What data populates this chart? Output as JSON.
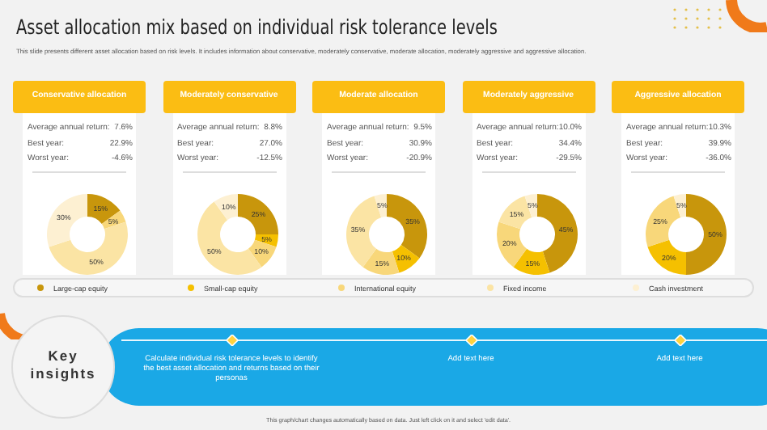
{
  "chart_data": [
    {
      "type": "other",
      "title": "Asset allocation mix based on individual risk tolerance levels",
      "subtitle": "This slide presents different asset allocation based on risk levels. It includes information about conservative, moderately conservative, moderate allocation, moderately aggressive and aggressive allocation."
    },
    {
      "type": "donut",
      "title": "Conservative allocation",
      "annotations": [
        "Average annual return:",
        "7.6%",
        "Best year:",
        "22.9%",
        "Worst year:",
        "-4.6%"
      ],
      "categories": [
        "Large-cap equity",
        "Small-cap equity",
        "International equity",
        "Fixed income",
        "Cash investment"
      ],
      "values": [
        15,
        0,
        5,
        50,
        30
      ],
      "value_labels": [
        "15%",
        null,
        "5%",
        "50%",
        "30%"
      ],
      "colors": [
        "#c8960c",
        "#f5c000",
        "#f8d77a",
        "#fbe4a4",
        "#fdf0d2"
      ],
      "legend": "bottom"
    },
    {
      "type": "donut",
      "title": "Moderately conservative",
      "annotations": [
        "Average annual return:",
        "8.8%",
        "Best year:",
        "27.0%",
        "Worst year:",
        "-12.5%"
      ],
      "values": [
        25,
        5,
        10,
        50,
        10
      ],
      "value_labels": [
        "25%",
        "5%",
        "10%",
        "50%",
        "10%"
      ],
      "colors": [
        "#c8960c",
        "#f5c000",
        "#f8d77a",
        "#fbe4a4",
        "#fdf0d2"
      ]
    },
    {
      "type": "donut",
      "title": "Moderate allocation",
      "annotations": [
        "Average annual return:",
        "9.5%",
        "Best year:",
        "30.9%",
        "Worst year:",
        "-20.9%"
      ],
      "values": [
        35,
        10,
        15,
        35,
        5
      ],
      "value_labels": [
        "35%",
        "10%",
        "15%",
        "35%",
        "5%"
      ],
      "colors": [
        "#c8960c",
        "#f5c000",
        "#f8d77a",
        "#fbe4a4",
        "#fdf0d2"
      ]
    },
    {
      "type": "donut",
      "title": "Moderately aggressive",
      "annotations": [
        "Average annual return:",
        "10.0%",
        "Best year:",
        "34.4%",
        "Worst year:",
        "-29.5%"
      ],
      "values": [
        45,
        15,
        20,
        15,
        5
      ],
      "value_labels": [
        "45%",
        "15%",
        "20%",
        "15%",
        "5%"
      ],
      "colors": [
        "#c8960c",
        "#f5c000",
        "#f8d77a",
        "#fbe4a4",
        "#fdf0d2"
      ]
    },
    {
      "type": "donut",
      "title": "Aggressive allocation",
      "annotations": [
        "Average annual return:",
        "10.3%",
        "Best year:",
        "39.9%",
        "Worst year:",
        "-36.0%"
      ],
      "values": [
        50,
        20,
        25,
        0,
        5
      ],
      "value_labels": [
        "50%",
        "20%",
        "25%",
        null,
        "5%"
      ],
      "colors": [
        "#c8960c",
        "#f5c000",
        "#f8d77a",
        "#fbe4a4",
        "#fdf0d2"
      ]
    },
    {
      "type": "other",
      "title": "Key insights",
      "annotations": [
        "Calculate individual risk tolerance levels to identify the best asset allocation and returns based on their personas",
        "Add text here",
        "Add text here",
        "This graph/chart changes automatically based on data. Just left click on it and select 'edit data'."
      ]
    }
  ]
}
